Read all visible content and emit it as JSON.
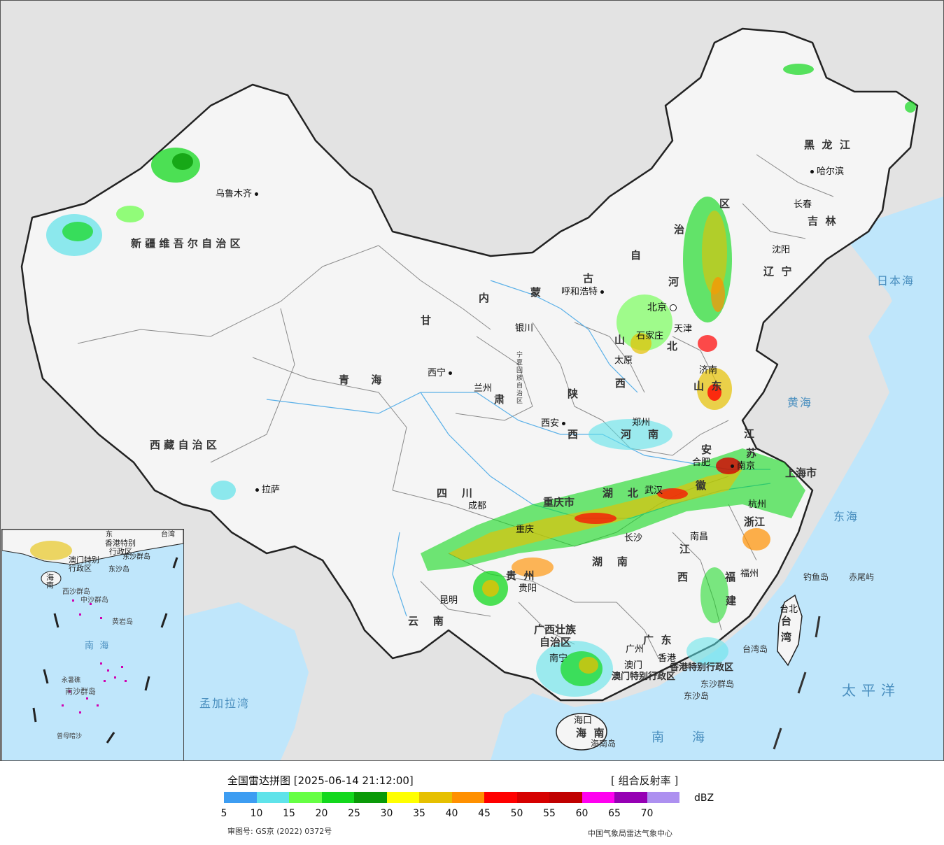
{
  "map": {
    "province_labels": [
      {
        "id": "xinjiang",
        "text": "新 疆 维 吾 尔 自 治 区"
      },
      {
        "id": "tibet",
        "text": "西 藏 自 治 区"
      },
      {
        "id": "qinghai",
        "text": "青      海"
      },
      {
        "id": "gansu",
        "text": "甘"
      },
      {
        "id": "nmg1",
        "text": "内"
      },
      {
        "id": "nmg2",
        "text": "蒙"
      },
      {
        "id": "nmg3",
        "text": "古"
      },
      {
        "id": "nmg4",
        "text": "自"
      },
      {
        "id": "nmg5",
        "text": "治"
      },
      {
        "id": "nmg6",
        "text": "区"
      },
      {
        "id": "heilongjiang",
        "text": "黑  龙  江"
      },
      {
        "id": "jilin",
        "text": "吉  林"
      },
      {
        "id": "liaoning",
        "text": "辽  宁"
      },
      {
        "id": "hebei1",
        "text": "河"
      },
      {
        "id": "hebei2",
        "text": "北"
      },
      {
        "id": "shanxi1",
        "text": "山"
      },
      {
        "id": "shanxi2",
        "text": "西"
      },
      {
        "id": "shandong",
        "text": "山  东"
      },
      {
        "id": "shaanxi1",
        "text": "陕"
      },
      {
        "id": "shaanxi2",
        "text": "西"
      },
      {
        "id": "henan1",
        "text": "河"
      },
      {
        "id": "henan2",
        "text": "南"
      },
      {
        "id": "sichuan",
        "text": "四    川"
      },
      {
        "id": "chongqing",
        "text": "重庆市"
      },
      {
        "id": "hubei",
        "text": "湖    北"
      },
      {
        "id": "anhui1",
        "text": "安"
      },
      {
        "id": "anhui2",
        "text": "徽"
      },
      {
        "id": "jiangsu1",
        "text": "江"
      },
      {
        "id": "jiangsu2",
        "text": "苏"
      },
      {
        "id": "shanghai",
        "text": "上海市"
      },
      {
        "id": "zhejiang",
        "text": "浙江"
      },
      {
        "id": "guizhou",
        "text": "贵  州"
      },
      {
        "id": "hunan",
        "text": "湖    南"
      },
      {
        "id": "jiangxi1",
        "text": "江"
      },
      {
        "id": "jiangxi2",
        "text": "西"
      },
      {
        "id": "fujian1",
        "text": "福"
      },
      {
        "id": "fujian2",
        "text": "建"
      },
      {
        "id": "yunnan",
        "text": "云    南"
      },
      {
        "id": "guangxi1",
        "text": "广西壮族"
      },
      {
        "id": "guangxi2",
        "text": "自治区"
      },
      {
        "id": "guangdong",
        "text": "广  东"
      },
      {
        "id": "hainan",
        "text": "海  南"
      },
      {
        "id": "taiwan1",
        "text": "台"
      },
      {
        "id": "taiwan2",
        "text": "湾"
      },
      {
        "id": "gansu2",
        "text": "肃"
      },
      {
        "id": "ningxia",
        "text": "宁夏回族自治区"
      },
      {
        "id": "tianjin",
        "text": "天津"
      },
      {
        "id": "hk",
        "text": "香港特别行政区"
      },
      {
        "id": "macau",
        "text": "澳门特别行政区"
      }
    ],
    "city_labels": [
      {
        "id": "urumqi",
        "text": "乌鲁木齐"
      },
      {
        "id": "lhasa",
        "text": "拉萨"
      },
      {
        "id": "xining",
        "text": "西宁"
      },
      {
        "id": "lanzhou",
        "text": "兰州"
      },
      {
        "id": "yinchuan",
        "text": "银川"
      },
      {
        "id": "hohhot",
        "text": "呼和浩特"
      },
      {
        "id": "harbin",
        "text": "哈尔滨"
      },
      {
        "id": "changchun",
        "text": "长春"
      },
      {
        "id": "shenyang",
        "text": "沈阳"
      },
      {
        "id": "beijing",
        "text": "北京"
      },
      {
        "id": "shijiazhuang",
        "text": "石家庄"
      },
      {
        "id": "taiyuan",
        "text": "太原"
      },
      {
        "id": "jinan",
        "text": "济南"
      },
      {
        "id": "zhengzhou",
        "text": "郑州"
      },
      {
        "id": "xian",
        "text": "西安"
      },
      {
        "id": "chengdu",
        "text": "成都"
      },
      {
        "id": "chongqing_c",
        "text": "重庆"
      },
      {
        "id": "wuhan",
        "text": "武汉"
      },
      {
        "id": "hefei",
        "text": "合肥"
      },
      {
        "id": "nanjing",
        "text": "南京"
      },
      {
        "id": "hangzhou",
        "text": "杭州"
      },
      {
        "id": "changsha",
        "text": "长沙"
      },
      {
        "id": "nanchang",
        "text": "南昌"
      },
      {
        "id": "fuzhou",
        "text": "福州"
      },
      {
        "id": "guiyang",
        "text": "贵阳"
      },
      {
        "id": "kunming",
        "text": "昆明"
      },
      {
        "id": "nanning",
        "text": "南宁"
      },
      {
        "id": "guangzhou",
        "text": "广州"
      },
      {
        "id": "haikou",
        "text": "海口"
      },
      {
        "id": "taipei",
        "text": "台北"
      },
      {
        "id": "hongkong",
        "text": "香港"
      },
      {
        "id": "macao",
        "text": "澳门"
      }
    ],
    "sea_labels": [
      {
        "id": "japan-sea",
        "text": "日本海"
      },
      {
        "id": "yellow-sea",
        "text": "黄海"
      },
      {
        "id": "east-sea",
        "text": "东海"
      },
      {
        "id": "pacific",
        "text": "太平洋"
      },
      {
        "id": "south-sea",
        "text": "南海"
      },
      {
        "id": "bengal",
        "text": "孟加拉湾"
      }
    ],
    "island_labels": [
      {
        "id": "diaoyu",
        "text": "钓鱼岛"
      },
      {
        "id": "chiwei",
        "text": "赤尾屿"
      },
      {
        "id": "taiwan-island",
        "text": "台湾岛"
      },
      {
        "id": "dongsha-qundao",
        "text": "东沙群岛"
      },
      {
        "id": "dongsha-dao",
        "text": "东沙岛"
      },
      {
        "id": "hainan-dao",
        "text": "海南岛"
      }
    ],
    "inset_labels": [
      {
        "id": "i-hk",
        "text": "香港特别"
      },
      {
        "id": "i-hk2",
        "text": "行政区"
      },
      {
        "id": "i-macau",
        "text": "澳门特别"
      },
      {
        "id": "i-macau2",
        "text": "行政区"
      },
      {
        "id": "i-dongsha",
        "text": "东沙群岛"
      },
      {
        "id": "i-dongsha2",
        "text": "东沙岛"
      },
      {
        "id": "i-hainan",
        "text": "海南"
      },
      {
        "id": "i-xisha",
        "text": "西沙群岛"
      },
      {
        "id": "i-zhongsha",
        "text": "中沙群岛"
      },
      {
        "id": "i-huangyan",
        "text": "黄岩岛"
      },
      {
        "id": "i-south-sea",
        "text": "南  海"
      },
      {
        "id": "i-nansha",
        "text": "南沙群岛"
      },
      {
        "id": "i-yongshu",
        "text": "永暑礁"
      },
      {
        "id": "i-zengmu",
        "text": "曾母暗沙"
      },
      {
        "id": "i-taiwan",
        "text": "台湾"
      },
      {
        "id": "i-east",
        "text": "东"
      }
    ]
  },
  "legend": {
    "title": "全国雷达拼图 [2025-06-14 21:12:00]",
    "product": "[ 组合反射率 ]",
    "unit": "dBZ",
    "colors": [
      "#3d9df2",
      "#5fe3ea",
      "#66ff44",
      "#13d81d",
      "#0a9a08",
      "#ffff00",
      "#e6c000",
      "#ff9000",
      "#ff0000",
      "#d60000",
      "#c00000",
      "#ff00f0",
      "#9600b4",
      "#ad90f0"
    ],
    "ticks": [
      "5",
      "10",
      "15",
      "20",
      "25",
      "30",
      "35",
      "40",
      "45",
      "50",
      "55",
      "60",
      "65",
      "70"
    ],
    "approval": "审图号: GS京 (2022) 0372号",
    "agency": "中国气象局雷达气象中心"
  }
}
